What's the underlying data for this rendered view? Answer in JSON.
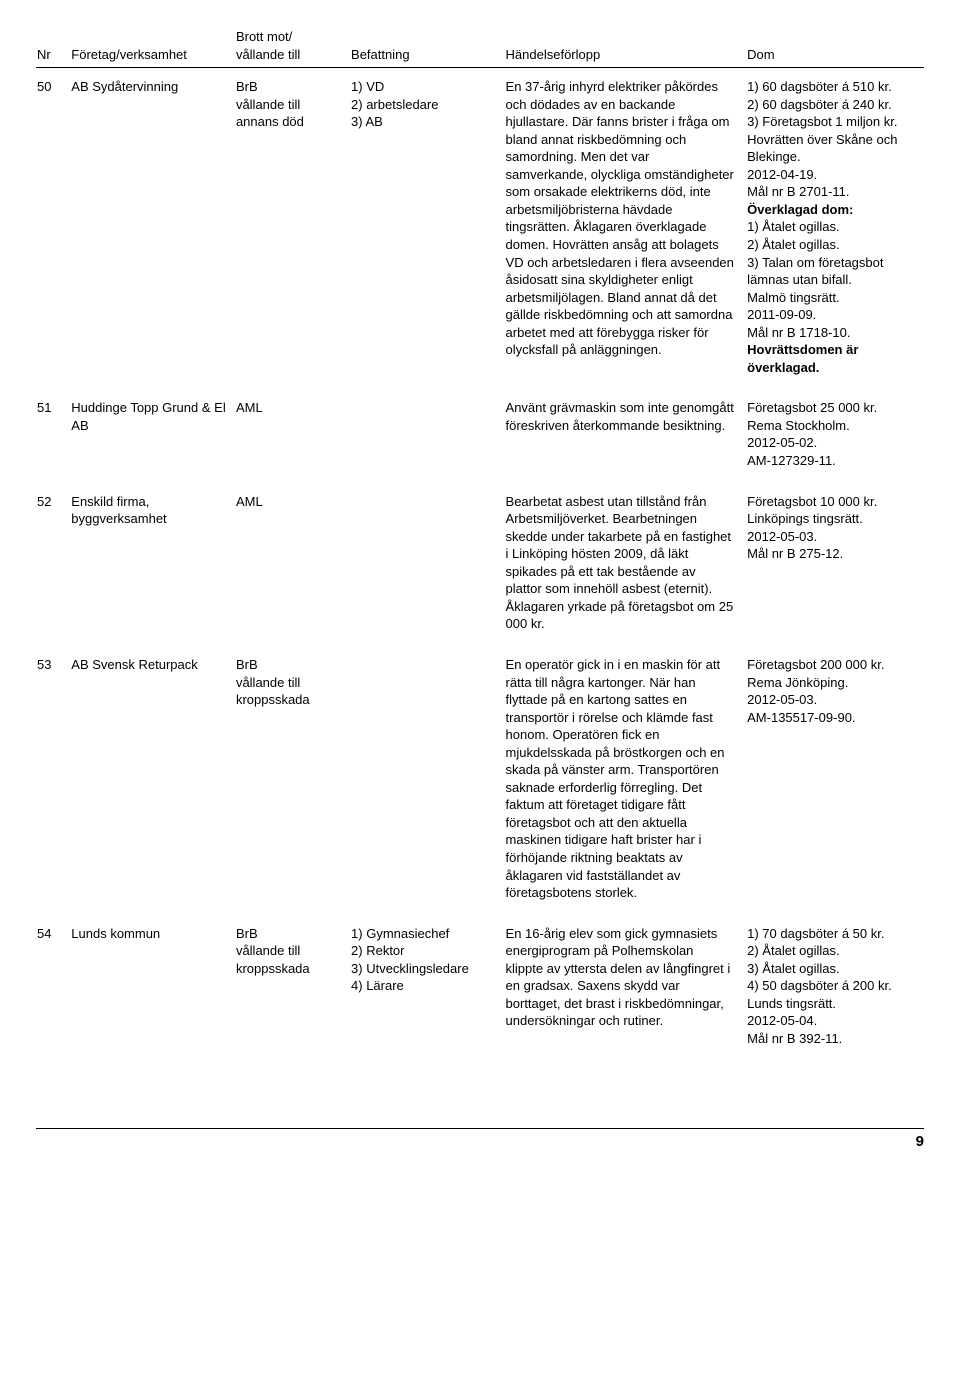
{
  "headers": {
    "nr": "Nr",
    "foretag": "Företag/verksamhet",
    "brott": "Brott mot/\nvållande till",
    "befattning": "Befattning",
    "handelse": "Händelseförlopp",
    "dom": "Dom"
  },
  "rows": [
    {
      "nr": "50",
      "foretag": "AB Sydåtervinning",
      "brott": "BrB\nvållande till\nannans död",
      "befattning": "1) VD\n2) arbetsledare\n3) AB",
      "handelse": "En 37-årig inhyrd elektriker påkördes och dödades av en backande hjullastare. Där fanns brister i fråga om bland annat riskbedömning och samordning. Men det var samverkande, olyckliga omständigheter som orsakade elektrikerns död, inte arbetsmiljöbristerna hävdade tingsrätten. Åklagaren överklagade domen. Hovrätten ansåg att bolagets VD och arbetsledaren i flera avseenden åsidosatt sina skyldigheter enligt arbetsmiljölagen. Bland annat då det gällde riskbedömning och att samordna arbetet med att förebygga risker för olycksfall på anläggningen.",
      "dom_parts": [
        {
          "t": "1) 60 dagsböter á 510 kr.",
          "b": false
        },
        {
          "t": "2) 60 dagsböter á 240 kr.",
          "b": false
        },
        {
          "t": "3) Företagsbot 1 miljon kr.",
          "b": false
        },
        {
          "t": "Hovrätten över Skåne och Blekinge.",
          "b": false
        },
        {
          "t": "2012-04-19.",
          "b": false
        },
        {
          "t": "Mål nr B 2701-11.",
          "b": false
        },
        {
          "t": "Överklagad dom:",
          "b": true
        },
        {
          "t": "1) Åtalet ogillas.",
          "b": false
        },
        {
          "t": "2) Åtalet ogillas.",
          "b": false
        },
        {
          "t": "3) Talan om företagsbot lämnas utan bifall.",
          "b": false
        },
        {
          "t": "Malmö tingsrätt.",
          "b": false
        },
        {
          "t": "2011-09-09.",
          "b": false
        },
        {
          "t": "Mål nr B 1718-10.",
          "b": false
        },
        {
          "t": "Hovrättsdomen är överklagad.",
          "b": true
        }
      ]
    },
    {
      "nr": "51",
      "foretag": "Huddinge Topp Grund & El AB",
      "brott": "AML",
      "befattning": "",
      "handelse": "Använt grävmaskin som inte genomgått föreskriven återkommande besiktning.",
      "dom_parts": [
        {
          "t": "Företagsbot 25 000 kr.",
          "b": false
        },
        {
          "t": "Rema Stockholm.",
          "b": false
        },
        {
          "t": "2012-05-02.",
          "b": false
        },
        {
          "t": "AM-127329-11.",
          "b": false
        }
      ]
    },
    {
      "nr": "52",
      "foretag": "Enskild firma, byggverksamhet",
      "brott": "AML",
      "befattning": "",
      "handelse": "Bearbetat asbest utan tillstånd från Arbetsmiljöverket. Bearbetningen skedde under takarbete på en fastighet i Linköping hösten 2009, då läkt spikades på ett tak bestående av plattor som innehöll asbest (eternit). Åklagaren yrkade på företagsbot om 25 000 kr.",
      "dom_parts": [
        {
          "t": "Företagsbot 10 000 kr.",
          "b": false
        },
        {
          "t": "Linköpings tingsrätt.",
          "b": false
        },
        {
          "t": "2012-05-03.",
          "b": false
        },
        {
          "t": "Mål nr B 275-12.",
          "b": false
        }
      ]
    },
    {
      "nr": "53",
      "foretag": "AB Svensk Returpack",
      "brott": "BrB\nvållande till\nkroppsskada",
      "befattning": "",
      "handelse": "En operatör gick in i en maskin för att rätta till några kartonger. När han flyttade på en kartong sattes en transportör i rörelse och klämde fast honom. Operatören fick en mjukdelsskada på bröstkorgen och en skada på vänster arm. Transportören saknade erforderlig förregling. Det faktum att företaget tidigare fått företagsbot och att den aktuella maskinen tidigare haft brister har i förhöjande riktning beaktats av åklagaren vid fastställandet av företagsbotens storlek.",
      "dom_parts": [
        {
          "t": "Företagsbot 200 000 kr.",
          "b": false
        },
        {
          "t": "Rema Jönköping.",
          "b": false
        },
        {
          "t": "2012-05-03.",
          "b": false
        },
        {
          "t": "AM-135517-09-90.",
          "b": false
        }
      ]
    },
    {
      "nr": "54",
      "foretag": "Lunds kommun",
      "brott": "BrB\nvållande till\nkroppsskada",
      "befattning": "1) Gymnasiechef\n2) Rektor\n3) Utvecklingsledare\n4) Lärare",
      "handelse": "En 16-årig elev som gick gymnasiets energiprogram på Polhemskolan klippte av yttersta delen av långfingret i en gradsax. Saxens skydd var borttaget, det brast i riskbedömningar, undersökningar och rutiner.",
      "dom_parts": [
        {
          "t": "1) 70 dagsböter á 50 kr.",
          "b": false
        },
        {
          "t": "2) Åtalet ogillas.",
          "b": false
        },
        {
          "t": "3) Åtalet ogillas.",
          "b": false
        },
        {
          "t": "4) 50 dagsböter á 200 kr.",
          "b": false
        },
        {
          "t": "Lunds tingsrätt.",
          "b": false
        },
        {
          "t": "2012-05-04.",
          "b": false
        },
        {
          "t": "Mål nr B 392-11.",
          "b": false
        }
      ]
    }
  ],
  "page_number": "9"
}
